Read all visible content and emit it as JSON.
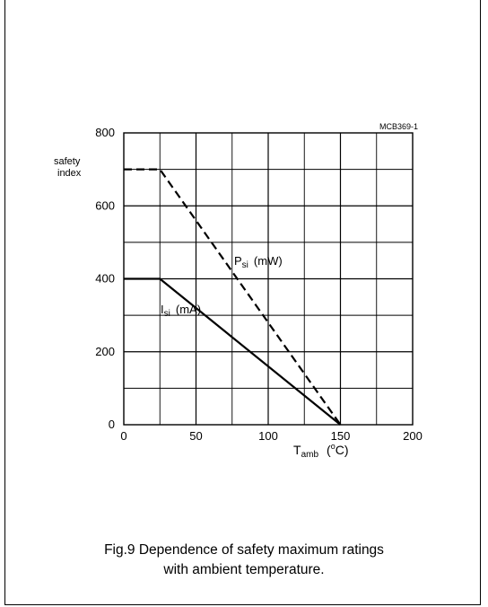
{
  "chart_data": {
    "type": "line",
    "chart_id": "MCB369-1",
    "ylabel": [
      "safety",
      "index"
    ],
    "xlabel_main": "T",
    "xlabel_sub": "amb",
    "xlabel_unit_open": "(",
    "xlabel_unit_sup": "o",
    "xlabel_unit_rest": "C)",
    "xlim": [
      0,
      200
    ],
    "ylim": [
      0,
      800
    ],
    "x_ticks": [
      "0",
      "50",
      "100",
      "150",
      "200"
    ],
    "y_ticks": [
      "0",
      "200",
      "400",
      "600",
      "800"
    ],
    "grid": true,
    "series": [
      {
        "name_main": "P",
        "name_sub": "si",
        "name_unit": "(mW)",
        "style": "dashed",
        "points": [
          [
            0,
            700
          ],
          [
            25,
            700
          ],
          [
            150,
            0
          ]
        ]
      },
      {
        "name_main": "I",
        "name_sub": "si",
        "name_unit": "(mA)",
        "style": "solid",
        "points": [
          [
            0,
            400
          ],
          [
            25,
            400
          ],
          [
            150,
            0
          ]
        ]
      }
    ]
  },
  "caption": {
    "line1": "Fig.9  Dependence of safety maximum ratings",
    "line2": "with ambient temperature."
  }
}
